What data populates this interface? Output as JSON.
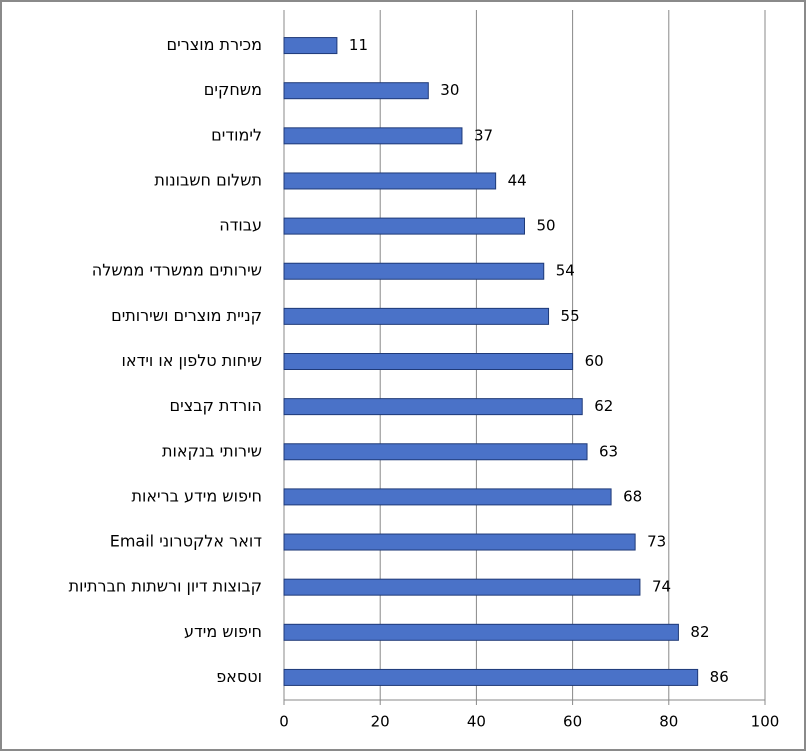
{
  "chart_data": {
    "type": "bar",
    "orientation": "horizontal",
    "categories": [
      "מכירת מוצרים",
      "משחקים",
      "לימודים",
      "תשלום חשבונות",
      "עבודה",
      "שירותים ממשרדי ממשלה",
      "קניית מוצרים ושירותים",
      "שיחות טלפון או וידאו",
      "הורדת קבצים",
      "שירותי בנקאות",
      "חיפוש מידע בריאות",
      "דואר אלקטרוני  Email",
      "קבוצות דיון ורשתות חברתיות",
      "חיפוש מידע",
      "וטסאפ"
    ],
    "values": [
      11,
      30,
      37,
      44,
      50,
      54,
      55,
      60,
      62,
      63,
      68,
      73,
      74,
      82,
      86
    ],
    "color": "#4a72c8",
    "xlim": [
      0,
      100
    ],
    "xticks": [
      0,
      20,
      40,
      60,
      80,
      100
    ],
    "grid": true
  }
}
